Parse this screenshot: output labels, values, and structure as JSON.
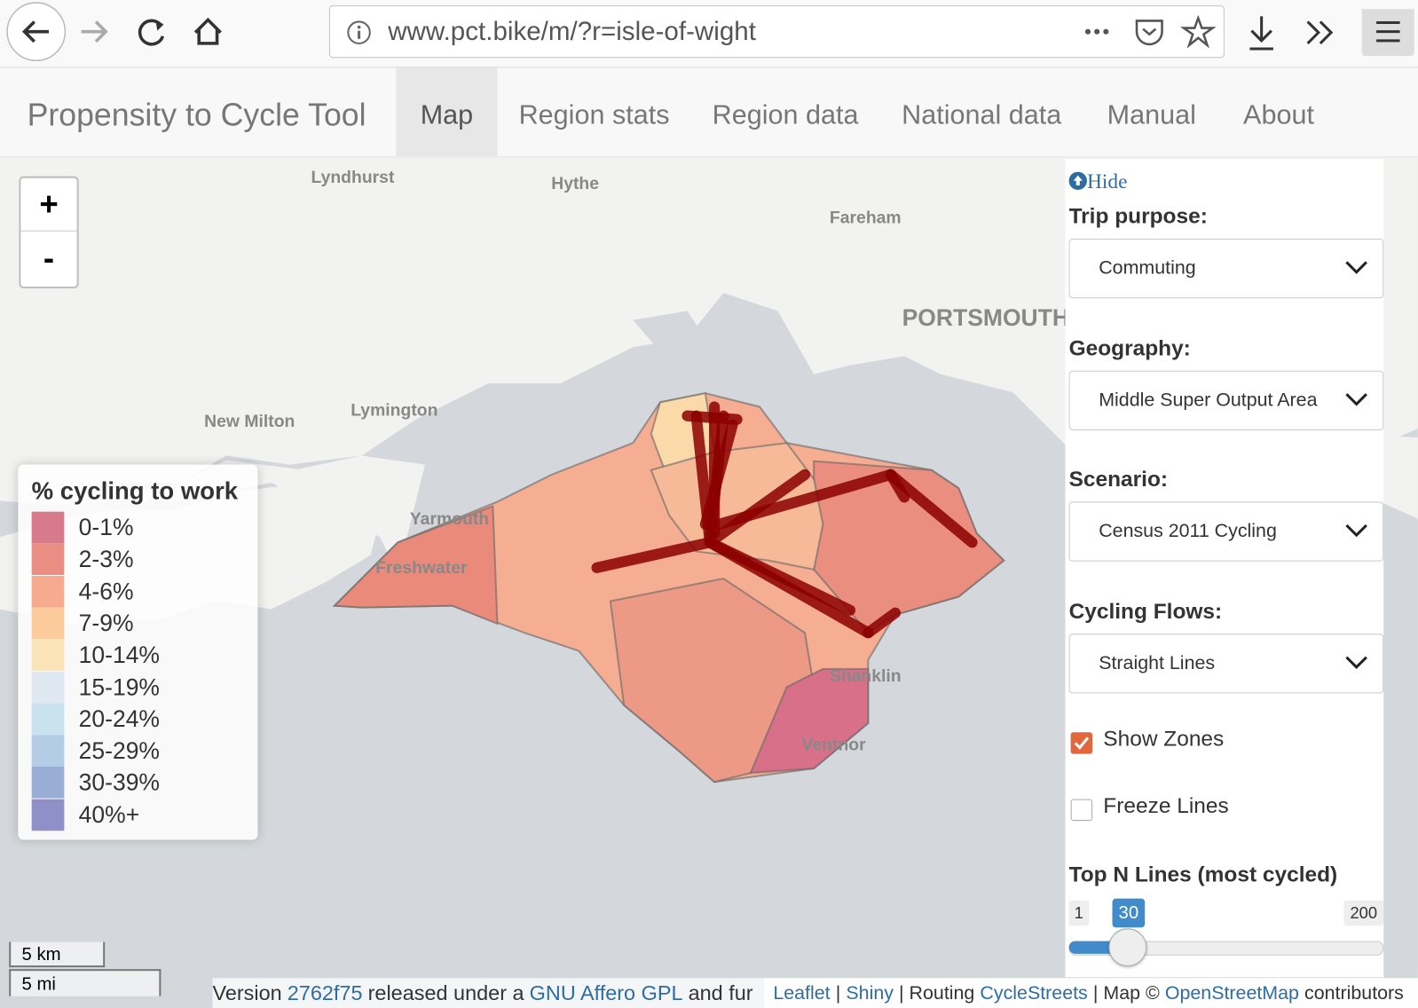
{
  "browser": {
    "url": "www.pct.bike/m/?r=isle-of-wight"
  },
  "nav": {
    "brand": "Propensity to Cycle Tool",
    "items": [
      "Map",
      "Region stats",
      "Region data",
      "National data",
      "Manual",
      "About"
    ]
  },
  "map": {
    "zoom_in": "+",
    "zoom_out": "-",
    "places": [
      "Lyndhurst",
      "Hythe",
      "Fareham",
      "PORTSMOUTH",
      "New Milton",
      "Lymington",
      "Yarmouth",
      "Freshwater",
      "Shanklin",
      "Ventnor"
    ],
    "legend": {
      "title": "% cycling to work",
      "items": [
        {
          "label": "0-1%",
          "color": "#d77a8c"
        },
        {
          "label": "2-3%",
          "color": "#ea8e84"
        },
        {
          "label": "4-6%",
          "color": "#f6ab8e"
        },
        {
          "label": "7-9%",
          "color": "#fbcb9c"
        },
        {
          "label": "10-14%",
          "color": "#fbe5b8"
        },
        {
          "label": "15-19%",
          "color": "#dde8f0"
        },
        {
          "label": "20-24%",
          "color": "#c8e2ee"
        },
        {
          "label": "25-29%",
          "color": "#b3cde6"
        },
        {
          "label": "30-39%",
          "color": "#9aadd4"
        },
        {
          "label": "40%+",
          "color": "#9090c8"
        }
      ]
    },
    "scale": [
      "5 km",
      "5 mi"
    ]
  },
  "panel": {
    "hide": "Hide",
    "fields": [
      {
        "label": "Trip purpose:",
        "value": "Commuting"
      },
      {
        "label": "Geography:",
        "value": "Middle Super Output Area"
      },
      {
        "label": "Scenario:",
        "value": "Census 2011 Cycling"
      },
      {
        "label": "Cycling Flows:",
        "value": "Straight Lines"
      }
    ],
    "checkboxes": [
      {
        "label": "Show Zones",
        "checked": true
      },
      {
        "label": "Freeze Lines",
        "checked": false
      }
    ],
    "slider": {
      "label": "Top N Lines (most cycled)",
      "min": 1,
      "value": 30,
      "max": 200
    }
  },
  "footer": {
    "parts": [
      {
        "text": "Version",
        "link": false
      },
      {
        "text": "2762f75",
        "link": true
      },
      {
        "text": "released under a",
        "link": false
      },
      {
        "text": "GNU Affero GPL",
        "link": true
      },
      {
        "text": "and fur",
        "link": false
      }
    ],
    "attribution": [
      {
        "text": "Leaflet",
        "link": true
      },
      {
        "text": "|",
        "link": false
      },
      {
        "text": "Shiny",
        "link": true
      },
      {
        "text": "| Routing",
        "link": false
      },
      {
        "text": "CycleStreets",
        "link": true
      },
      {
        "text": "| Map ©",
        "link": false
      },
      {
        "text": "OpenStreetMap",
        "link": true
      },
      {
        "text": "contributors",
        "link": false
      }
    ]
  }
}
